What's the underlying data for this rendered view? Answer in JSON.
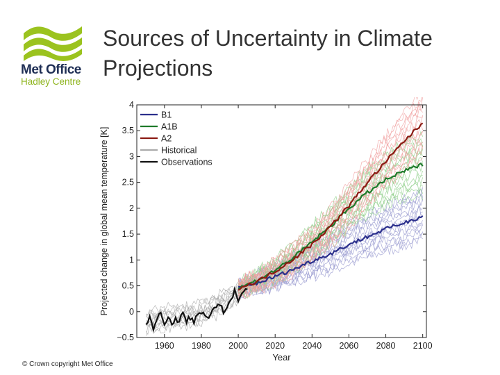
{
  "logo": {
    "line1": "Met Office",
    "line2": "Hadley Centre",
    "colors": {
      "green": "#9bc31f",
      "navy": "#1f2f55",
      "light_green": "#8fb51f"
    }
  },
  "slide": {
    "title": "Sources of Uncertainty in Climate Projections",
    "copyright": "© Crown copyright   Met Office"
  },
  "chart_data": {
    "type": "line",
    "xlabel": "Year",
    "ylabel": "Projected change in global mean temperature  [K]",
    "xlim": [
      1945,
      2102
    ],
    "ylim": [
      -0.5,
      4
    ],
    "x_ticks": [
      1960,
      1980,
      2000,
      2020,
      2040,
      2060,
      2080,
      2100
    ],
    "x_tick_labels": [
      "1960",
      "1980",
      "2000",
      "2020",
      "2040",
      "2060",
      "2080",
      "2100"
    ],
    "y_ticks": [
      -0.5,
      0,
      0.5,
      1,
      1.5,
      2,
      2.5,
      3,
      3.5,
      4
    ],
    "y_tick_labels": [
      "−0.5",
      "0",
      "0.5",
      "1",
      "1.5",
      "2",
      "2.5",
      "3",
      "3.5",
      "4"
    ],
    "legend_position": "top-left",
    "grid": false,
    "series": [
      {
        "name": "B1",
        "color": "#2b2f8c",
        "ensemble_color": "#9a9bd0",
        "x": [
          2000,
          2010,
          2020,
          2030,
          2040,
          2050,
          2060,
          2070,
          2080,
          2090,
          2100
        ],
        "mean": [
          0.45,
          0.55,
          0.68,
          0.82,
          0.98,
          1.12,
          1.3,
          1.45,
          1.6,
          1.72,
          1.85
        ],
        "spread": [
          0.15,
          0.2,
          0.25,
          0.3,
          0.35,
          0.38,
          0.42,
          0.45,
          0.48,
          0.5,
          0.55
        ]
      },
      {
        "name": "A1B",
        "color": "#1e7a2a",
        "ensemble_color": "#8fcf8a",
        "x": [
          2000,
          2010,
          2020,
          2030,
          2040,
          2050,
          2060,
          2070,
          2080,
          2090,
          2100
        ],
        "mean": [
          0.45,
          0.6,
          0.8,
          1.05,
          1.35,
          1.65,
          2.0,
          2.3,
          2.55,
          2.72,
          2.85
        ],
        "spread": [
          0.15,
          0.2,
          0.25,
          0.3,
          0.35,
          0.4,
          0.45,
          0.5,
          0.55,
          0.6,
          0.65
        ]
      },
      {
        "name": "A2",
        "color": "#8b1a12",
        "ensemble_color": "#f0a0a0",
        "x": [
          2000,
          2010,
          2020,
          2030,
          2040,
          2050,
          2060,
          2070,
          2080,
          2090,
          2100
        ],
        "mean": [
          0.45,
          0.58,
          0.78,
          1.02,
          1.3,
          1.65,
          2.05,
          2.5,
          2.9,
          3.3,
          3.65
        ],
        "spread": [
          0.15,
          0.2,
          0.25,
          0.3,
          0.35,
          0.4,
          0.45,
          0.5,
          0.55,
          0.6,
          0.7
        ]
      },
      {
        "name": "Historical",
        "color": "#aaaaaa",
        "x": [
          1950,
          1960,
          1970,
          1980,
          1990,
          2000
        ],
        "mean": [
          -0.2,
          -0.12,
          -0.1,
          -0.02,
          0.15,
          0.35
        ],
        "spread": [
          0.2,
          0.22,
          0.2,
          0.2,
          0.22,
          0.2
        ]
      },
      {
        "name": "Observations",
        "color": "#111111",
        "x": [
          1950,
          1952,
          1954,
          1956,
          1958,
          1960,
          1962,
          1964,
          1966,
          1968,
          1970,
          1972,
          1974,
          1976,
          1978,
          1980,
          1982,
          1984,
          1986,
          1988,
          1990,
          1992,
          1994,
          1996,
          1998,
          2000,
          2002,
          2005
        ],
        "y": [
          -0.25,
          -0.05,
          -0.3,
          -0.15,
          -0.05,
          -0.2,
          -0.08,
          -0.3,
          -0.12,
          -0.18,
          -0.05,
          -0.2,
          -0.1,
          -0.25,
          -0.05,
          0.0,
          -0.05,
          -0.12,
          0.05,
          0.1,
          0.15,
          0.0,
          0.1,
          0.2,
          0.4,
          0.25,
          0.38,
          0.4
        ]
      }
    ]
  }
}
